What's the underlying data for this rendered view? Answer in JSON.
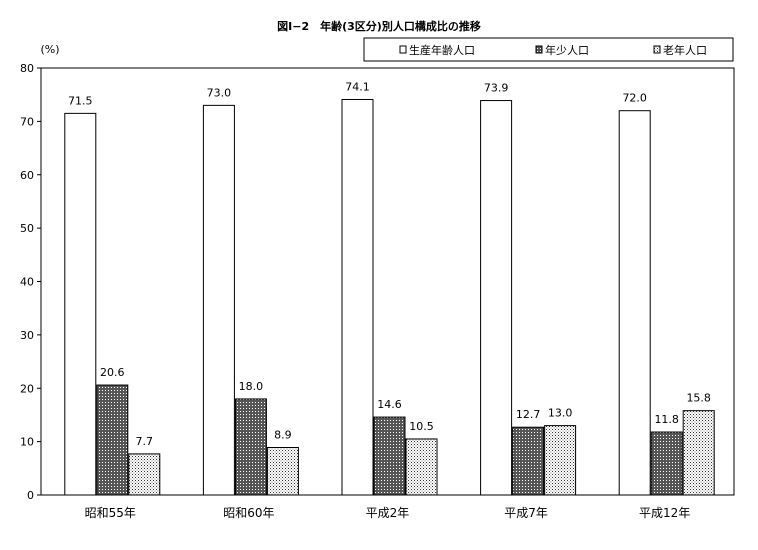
{
  "chart_data": {
    "type": "bar",
    "title": "図Ⅰ−2　年齢(3区分)別人口構成比の推移",
    "ylabel": "(%)",
    "xlabel": "",
    "ylim": [
      0,
      80
    ],
    "yticks": [
      0,
      10,
      20,
      30,
      40,
      50,
      60,
      70,
      80
    ],
    "categories": [
      "昭和55年",
      "昭和60年",
      "平成2年",
      "平成7年",
      "平成12年"
    ],
    "series": [
      {
        "name": "生産年齢人口",
        "values": [
          71.5,
          73.0,
          74.1,
          73.9,
          72.0
        ],
        "labels": [
          "71.5",
          "73.0",
          "74.1",
          "73.9",
          "72.0"
        ],
        "pattern": "white"
      },
      {
        "name": "年少人口",
        "values": [
          20.6,
          18.0,
          14.6,
          12.7,
          11.8
        ],
        "labels": [
          "20.6",
          "18.0",
          "14.6",
          "12.7",
          "11.8"
        ],
        "pattern": "dark-dots"
      },
      {
        "name": "老年人口",
        "values": [
          7.7,
          8.9,
          10.5,
          13.0,
          15.8
        ],
        "labels": [
          "7.7",
          "8.9",
          "10.5",
          "13.0",
          "15.8"
        ],
        "pattern": "light-dots"
      }
    ],
    "legend_position": "top-right",
    "grid": false
  }
}
